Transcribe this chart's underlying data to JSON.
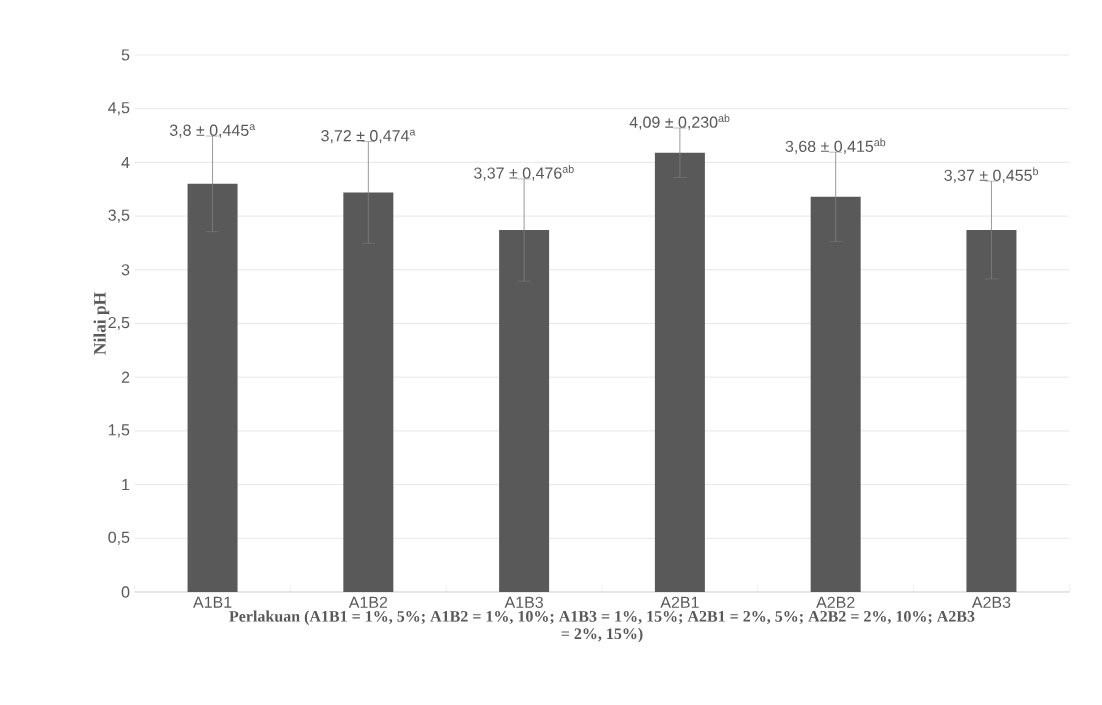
{
  "chart_data": {
    "type": "bar",
    "categories": [
      "A1B1",
      "A1B2",
      "A1B3",
      "A2B1",
      "A2B2",
      "A2B3"
    ],
    "values": [
      3.8,
      3.72,
      3.37,
      4.09,
      3.68,
      3.37
    ],
    "errors": [
      0.445,
      0.474,
      0.476,
      0.23,
      0.415,
      0.455
    ],
    "value_labels": [
      "3,8 ± 0,445$^{a}$",
      "3,72 ± 0,474$^{a}$",
      "3,37 ± 0,476$^{ab}$",
      "4,09 ± 0,230$^{ab}$",
      "3,68 ± 0,415$^{ab}$",
      "3,37 ± 0,455$^{b}$"
    ],
    "color": "#595959",
    "ylim": [
      0,
      5
    ],
    "yticks": [
      0,
      {
        "value": 0.5,
        "label": "0,5"
      },
      1,
      {
        "value": 1.5,
        "label": "1,5"
      },
      2,
      {
        "value": 2.5,
        "label": "2,5"
      },
      3,
      {
        "value": 3.5,
        "label": "3,5"
      },
      4,
      {
        "value": 4.5,
        "label": "4,5"
      },
      5
    ],
    "grid": "y",
    "xlabel": "Perlakuan  (A1B1 = 1%, 5%; A1B2 = 1%, 10%; A1B3 = 1%, 15%; A2B1 = 2%, 5%; A2B2 = 2%, 10%; A2B3 = 2%, 15%)",
    "ylabel": "Nilai pH"
  }
}
